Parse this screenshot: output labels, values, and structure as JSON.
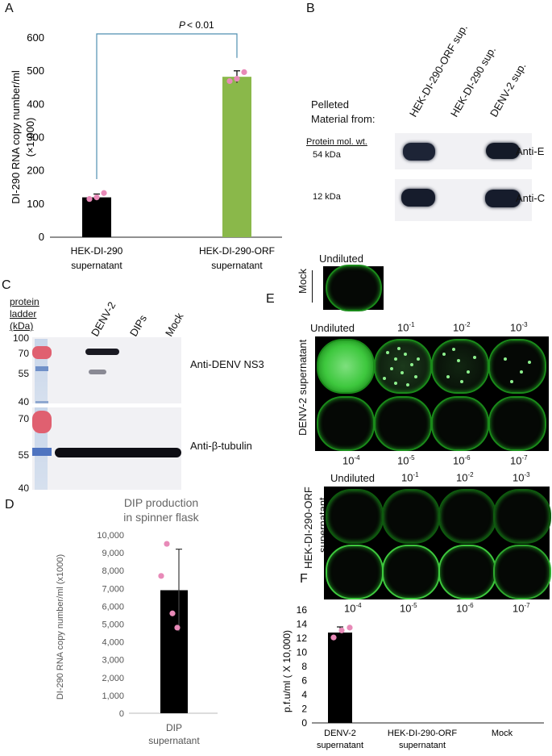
{
  "panels": {
    "A": "A",
    "B": "B",
    "C": "C",
    "D": "D",
    "E": "E",
    "F": "F"
  },
  "panel_a": {
    "pvalue_prefix": "P",
    "pvalue_suffix": " < 0.01",
    "ylabel_line1": "DI-290 RNA copy number/ml",
    "ylabel_line2": "(×1,000)",
    "yticks": [
      "0",
      "100",
      "200",
      "300",
      "400",
      "500",
      "600"
    ],
    "cat1_line1": "HEK-DI-290",
    "cat1_line2": "supernatant",
    "cat2_line1": "HEK-DI-290-ORF",
    "cat2_line2": "supernatant",
    "colors": {
      "bar1": "#000000",
      "bar2": "#8ab84a",
      "dots": "#e88ab8",
      "bracket": "#4f8fb0"
    }
  },
  "panel_b": {
    "lanes": [
      "HEK-DI-290-ORF sup.",
      "HEK-DI-290 sup.",
      "DENV-2 sup."
    ],
    "pelleted_line1": "Pelleted",
    "pelleted_line2": "Material from:",
    "mw_header": "Protein mol. wt.",
    "mw_54": "54 kDa",
    "mw_12": "12 kDa",
    "anti_e": "Anti-E",
    "anti_c": "Anti-C"
  },
  "panel_c": {
    "ladder_line1": "protein",
    "ladder_line2": "ladder",
    "ladder_line3": "(kDa)",
    "lanes": [
      "DENV-2",
      "DIPs",
      "Mock"
    ],
    "mw_top": [
      "100",
      "70",
      "55",
      "40"
    ],
    "mw_bottom": [
      "70",
      "55",
      "40"
    ],
    "anti_ns3": "Anti-DENV NS3",
    "anti_tubulin": "Anti-β-tubulin"
  },
  "panel_d": {
    "title_line1": "DIP production",
    "title_line2": "in spinner flask",
    "ylabel": "DI-290 RNA copy number/ml  (x1000)",
    "yticks": [
      "0",
      "1,000",
      "2,000",
      "3,000",
      "4,000",
      "5,000",
      "6,000",
      "7,000",
      "8,000",
      "9,000",
      "10,000"
    ],
    "cat_line1": "DIP",
    "cat_line2": "supernatant"
  },
  "panel_e": {
    "undiluted": "Undiluted",
    "mock": "Mock",
    "denv_label": "DENV-2 supernatant",
    "orf_label_line1": "HEK-DI-290-ORF",
    "orf_label_line2": "supernatant",
    "dil_top": [
      {
        "base": "10",
        "exp": "-1"
      },
      {
        "base": "10",
        "exp": "-2"
      },
      {
        "base": "10",
        "exp": "-3"
      }
    ],
    "dil_bottom": [
      {
        "base": "10",
        "exp": "-4"
      },
      {
        "base": "10",
        "exp": "-5"
      },
      {
        "base": "10",
        "exp": "-6"
      },
      {
        "base": "10",
        "exp": "-7"
      }
    ]
  },
  "panel_f": {
    "ylabel": "p.f.u/ml ( X 10,000)",
    "yticks": [
      "0",
      "2",
      "4",
      "6",
      "8",
      "10",
      "12",
      "14",
      "16"
    ],
    "cat1_line1": "DENV-2",
    "cat1_line2": "supernatant",
    "cat2_line1": "HEK-DI-290-ORF",
    "cat2_line2": "supernatant",
    "cat3": "Mock"
  },
  "chart_data": [
    {
      "panel": "A",
      "type": "bar",
      "categories": [
        "HEK-DI-290 supernatant",
        "HEK-DI-290-ORF supernatant"
      ],
      "values": [
        120,
        483
      ],
      "error": [
        10,
        18
      ],
      "points": [
        [
          115,
          120,
          133
        ],
        [
          470,
          477,
          497
        ]
      ],
      "ylabel": "DI-290 RNA copy number/ml (×1,000)",
      "ylim": [
        0,
        600
      ],
      "annotation": "P < 0.01"
    },
    {
      "panel": "D",
      "type": "bar",
      "categories": [
        "DIP supernatant"
      ],
      "values": [
        6900
      ],
      "error": [
        2300
      ],
      "points": [
        9500,
        7700,
        5600,
        4800
      ],
      "title": "DIP production in spinner flask",
      "ylabel": "DI-290 RNA copy number/ml  (x1000)",
      "ylim": [
        0,
        10000
      ]
    },
    {
      "panel": "F",
      "type": "bar",
      "categories": [
        "DENV-2 supernatant",
        "HEK-DI-290-ORF supernatant",
        "Mock"
      ],
      "values": [
        12.8,
        0,
        0
      ],
      "error": [
        0.8,
        0,
        0
      ],
      "points": [
        12.1,
        13.1,
        13.5
      ],
      "ylabel": "p.f.u/ml ( X 10,000)",
      "ylim": [
        0,
        16
      ]
    }
  ]
}
